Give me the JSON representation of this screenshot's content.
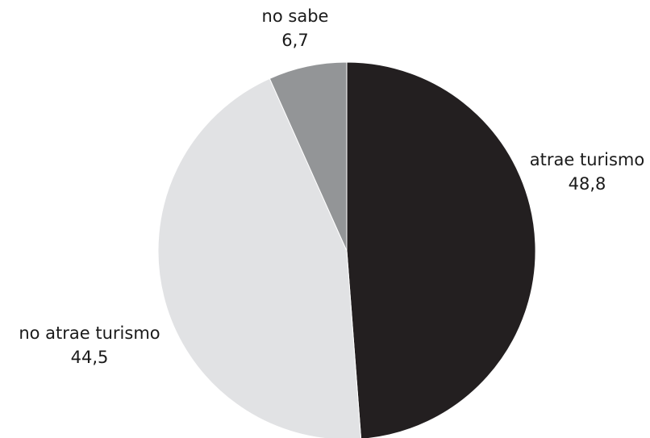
{
  "chart_data": {
    "type": "pie",
    "title": "",
    "slices": [
      {
        "label": "atrae turismo",
        "value": 48.8,
        "value_text": "48,8",
        "color": "#231f20"
      },
      {
        "label": "no atrae turismo",
        "value": 44.5,
        "value_text": "44,5",
        "color": "#e1e2e4"
      },
      {
        "label": "no sabe",
        "value": 6.7,
        "value_text": "6,7",
        "color": "#939597"
      }
    ],
    "start_angle": "12 o'clock",
    "direction": "clockwise",
    "legend": "none (direct labels)"
  }
}
